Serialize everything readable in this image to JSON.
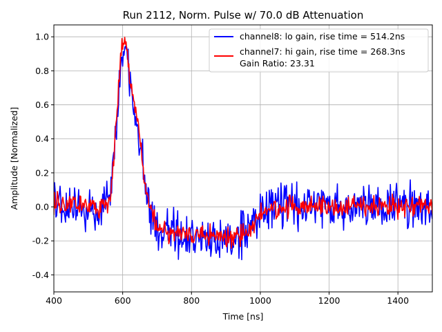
{
  "chart_data": {
    "type": "line",
    "title": "Run 2112, Norm. Pulse w/ 70.0 dB Attenuation",
    "xlabel": "Time [ns]",
    "ylabel": "Amplitude [Normalized]",
    "xlim": [
      400,
      1500
    ],
    "ylim": [
      -0.5,
      1.07
    ],
    "xticks": [
      400,
      600,
      800,
      1000,
      1200,
      1400
    ],
    "yticks": [
      -0.4,
      -0.2,
      0.0,
      0.2,
      0.4,
      0.6,
      0.8,
      1.0
    ],
    "grid": true,
    "legend_position": "top-right",
    "legend_extra_text": "Gain Ratio: 23.31",
    "series": [
      {
        "name": "channel8: lo gain, rise time = 514.2ns",
        "color": "#0000ff",
        "noise": 0.065,
        "x": [
          400,
          540,
          565,
          580,
          595,
          605,
          612,
          620,
          635,
          650,
          665,
          680,
          700,
          750,
          800,
          850,
          900,
          950,
          975,
          1000,
          1025,
          1050,
          1100,
          1200,
          1300,
          1400,
          1500
        ],
        "y": [
          0.0,
          0.0,
          0.05,
          0.45,
          0.85,
          0.93,
          0.9,
          0.72,
          0.58,
          0.38,
          0.15,
          -0.02,
          -0.12,
          -0.16,
          -0.18,
          -0.17,
          -0.2,
          -0.17,
          -0.13,
          -0.04,
          0.0,
          0.01,
          0.0,
          0.0,
          0.0,
          0.0,
          0.0
        ]
      },
      {
        "name": "channel7: hi gain, rise time = 268.3ns",
        "color": "#ff0000",
        "noise": 0.03,
        "x": [
          400,
          540,
          565,
          580,
          595,
          605,
          612,
          620,
          635,
          650,
          665,
          680,
          700,
          750,
          800,
          850,
          900,
          950,
          975,
          1000,
          1025,
          1050,
          1100,
          1200,
          1300,
          1400,
          1500
        ],
        "y": [
          0.02,
          0.0,
          0.05,
          0.45,
          0.9,
          0.98,
          0.96,
          0.75,
          0.6,
          0.4,
          0.15,
          0.0,
          -0.12,
          -0.16,
          -0.18,
          -0.17,
          -0.18,
          -0.17,
          -0.12,
          -0.04,
          0.0,
          0.0,
          0.0,
          0.0,
          0.0,
          0.0,
          0.0
        ]
      }
    ]
  }
}
